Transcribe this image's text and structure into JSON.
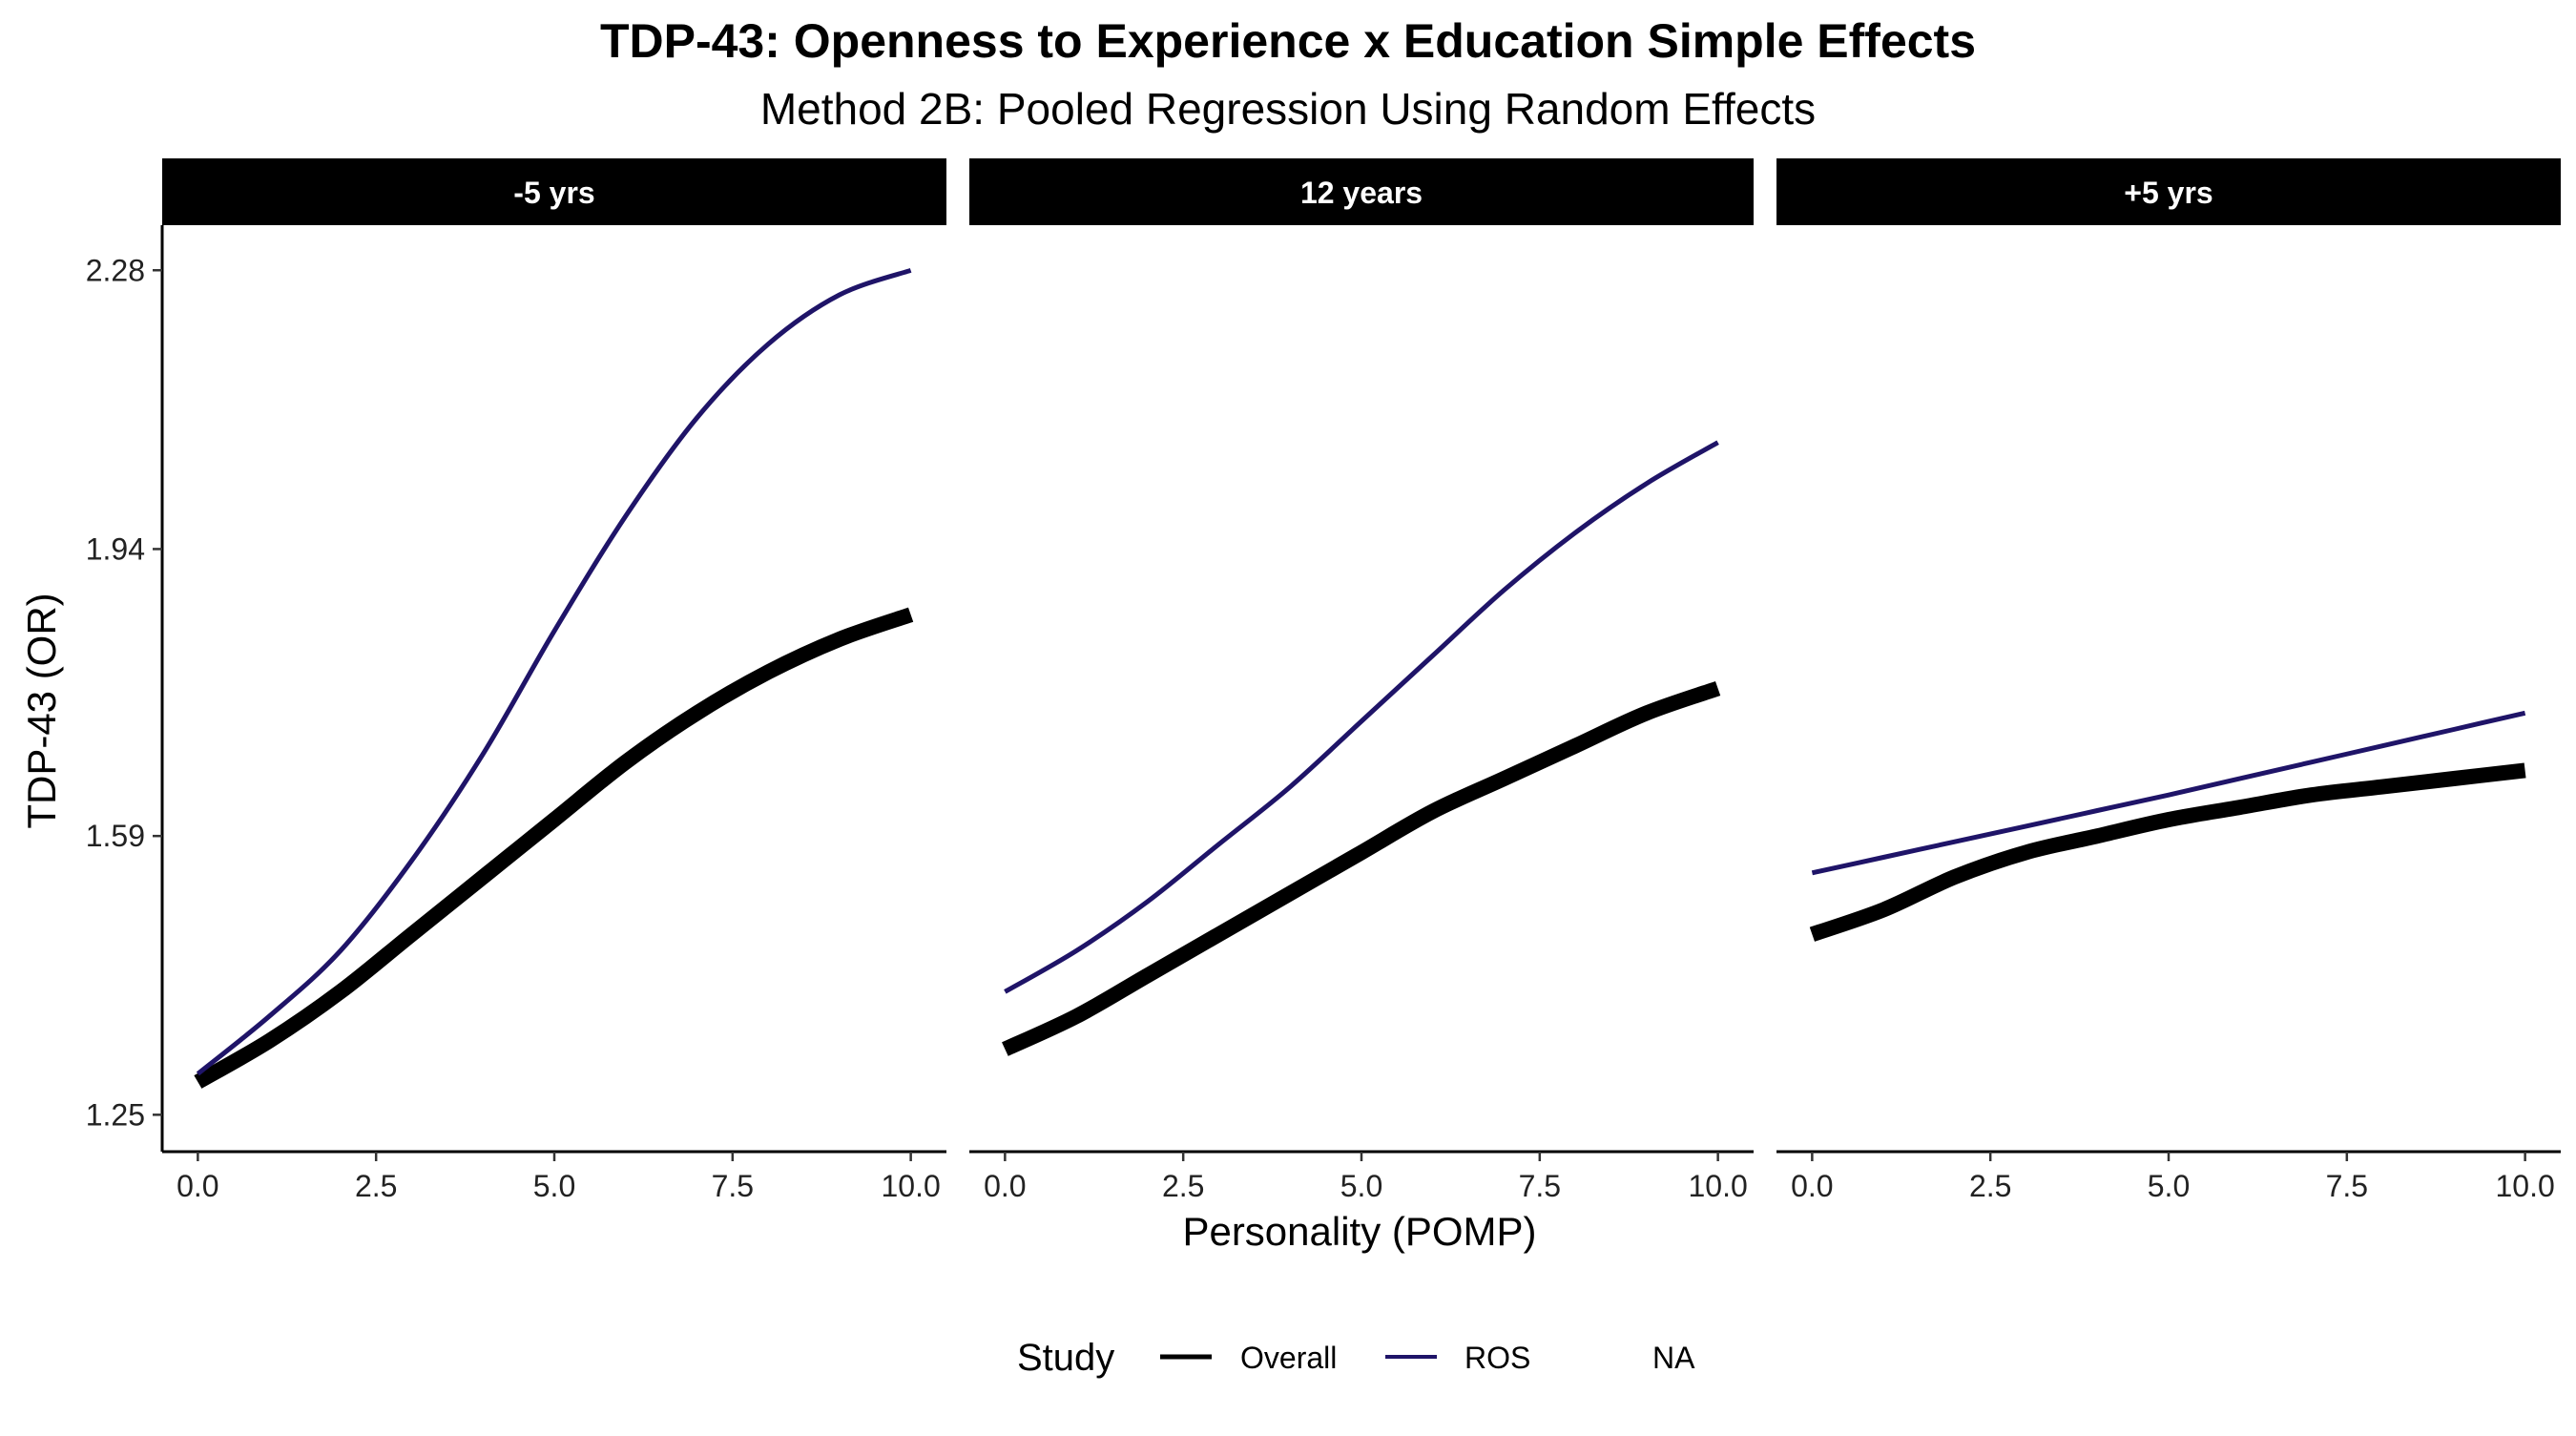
{
  "chart_data": {
    "type": "line",
    "title": "TDP-43: Openness to Experience x Education Simple Effects",
    "subtitle": "Method 2B: Pooled Regression Using Random Effects",
    "xlabel": "Personality (POMP)",
    "ylabel": "TDP-43 (OR)",
    "xlim": [
      -0.5,
      10.5
    ],
    "ylim": [
      1.205,
      2.335
    ],
    "x_ticks": [
      0.0,
      2.5,
      5.0,
      7.5,
      10.0
    ],
    "x_tick_labels": [
      "0.0",
      "2.5",
      "5.0",
      "7.5",
      "10.0"
    ],
    "y_ticks": [
      1.25,
      1.59,
      1.94,
      2.28
    ],
    "y_tick_labels": [
      "1.25",
      "1.59",
      "1.94",
      "2.28"
    ],
    "grid": false,
    "legend": {
      "title": "Study",
      "position": "bottom",
      "entries": [
        {
          "label": "Overall",
          "color": "#000000"
        },
        {
          "label": "ROS",
          "color": "#1f1468"
        },
        {
          "label": "NA",
          "color": null
        }
      ]
    },
    "panels": [
      {
        "label": "-5 yrs",
        "series": [
          {
            "name": "Overall",
            "x": [
              0,
              1,
              2,
              3,
              4,
              5,
              6,
              7,
              8,
              9,
              10
            ],
            "y": [
              1.29,
              1.34,
              1.4,
              1.47,
              1.54,
              1.61,
              1.68,
              1.74,
              1.79,
              1.83,
              1.86
            ]
          },
          {
            "name": "ROS",
            "x": [
              0,
              1,
              2,
              3,
              4,
              5,
              6,
              7,
              8,
              9,
              10
            ],
            "y": [
              1.3,
              1.37,
              1.45,
              1.56,
              1.69,
              1.84,
              1.98,
              2.1,
              2.19,
              2.25,
              2.28
            ]
          }
        ]
      },
      {
        "label": "12 years",
        "series": [
          {
            "name": "Overall",
            "x": [
              0,
              1,
              2,
              3,
              4,
              5,
              6,
              7,
              8,
              9,
              10
            ],
            "y": [
              1.33,
              1.37,
              1.42,
              1.47,
              1.52,
              1.57,
              1.62,
              1.66,
              1.7,
              1.74,
              1.77
            ]
          },
          {
            "name": "ROS",
            "x": [
              0,
              1,
              2,
              3,
              4,
              5,
              6,
              7,
              8,
              9,
              10
            ],
            "y": [
              1.4,
              1.45,
              1.51,
              1.58,
              1.65,
              1.73,
              1.81,
              1.89,
              1.96,
              2.02,
              2.07
            ]
          }
        ]
      },
      {
        "label": "+5 yrs",
        "series": [
          {
            "name": "Overall",
            "x": [
              0,
              1,
              2,
              3,
              4,
              5,
              6,
              7,
              8,
              9,
              10
            ],
            "y": [
              1.47,
              1.5,
              1.54,
              1.57,
              1.59,
              1.61,
              1.625,
              1.64,
              1.65,
              1.66,
              1.67
            ]
          },
          {
            "name": "ROS",
            "x": [
              0,
              1,
              2,
              3,
              4,
              5,
              6,
              7,
              8,
              9,
              10
            ],
            "y": [
              1.545,
              1.564,
              1.583,
              1.602,
              1.621,
              1.64,
              1.66,
              1.68,
              1.7,
              1.72,
              1.74
            ]
          }
        ]
      }
    ]
  }
}
